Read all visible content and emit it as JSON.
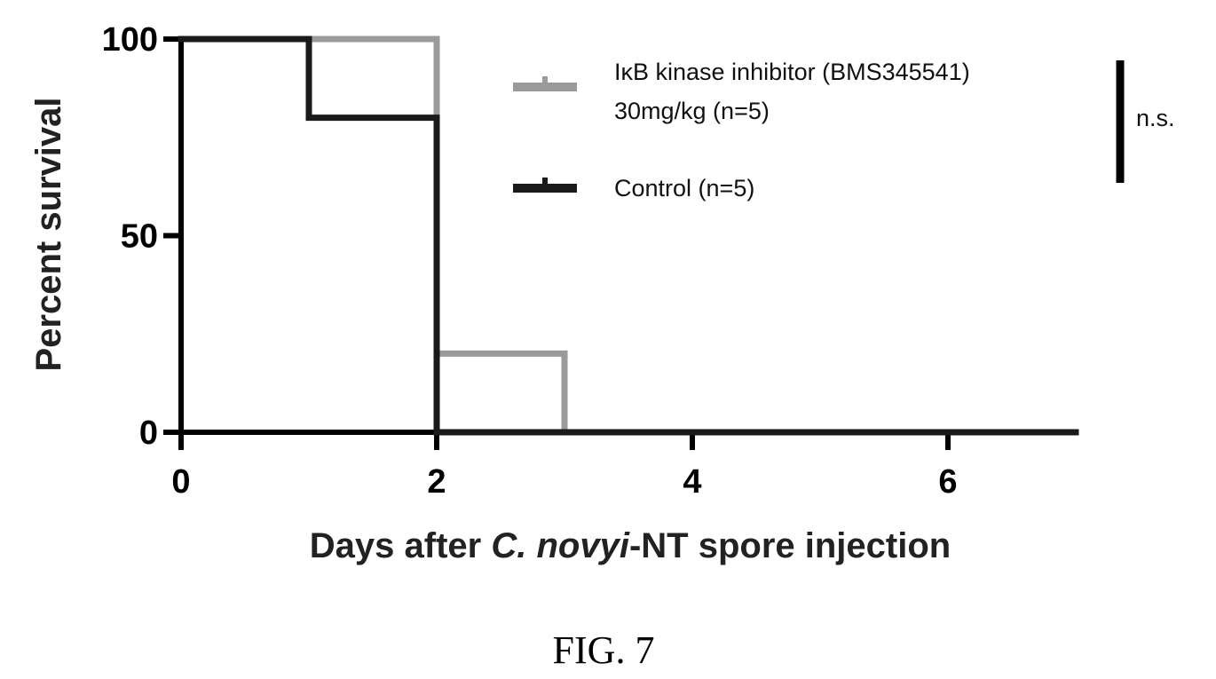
{
  "chart_data": {
    "type": "line",
    "subtype": "kaplan-meier-step",
    "xlabel": {
      "pre": "Days after ",
      "italic": "C. novyi",
      "post": "-NT spore injection"
    },
    "ylabel": "Percent survival",
    "xlim": [
      0,
      7
    ],
    "ylim": [
      0,
      100
    ],
    "x_ticks": [
      "0",
      "2",
      "4",
      "6"
    ],
    "y_ticks": [
      "0",
      "50",
      "100"
    ],
    "grid": false,
    "legend_position": "top-right",
    "series": [
      {
        "name_line1": "IκB kinase inhibitor (BMS345541)",
        "name_line2": "30mg/kg (n=5)",
        "color": "#9a9a9a",
        "x": [
          0,
          2,
          2,
          3,
          3,
          7
        ],
        "y": [
          100,
          100,
          20,
          20,
          0,
          0
        ]
      },
      {
        "name_line1": "Control (n=5)",
        "color": "#1a1a1a",
        "x": [
          0,
          1,
          1,
          2,
          2,
          7
        ],
        "y": [
          100,
          100,
          80,
          80,
          0,
          0
        ]
      }
    ],
    "significance": "n.s."
  },
  "caption": "FIG. 7"
}
